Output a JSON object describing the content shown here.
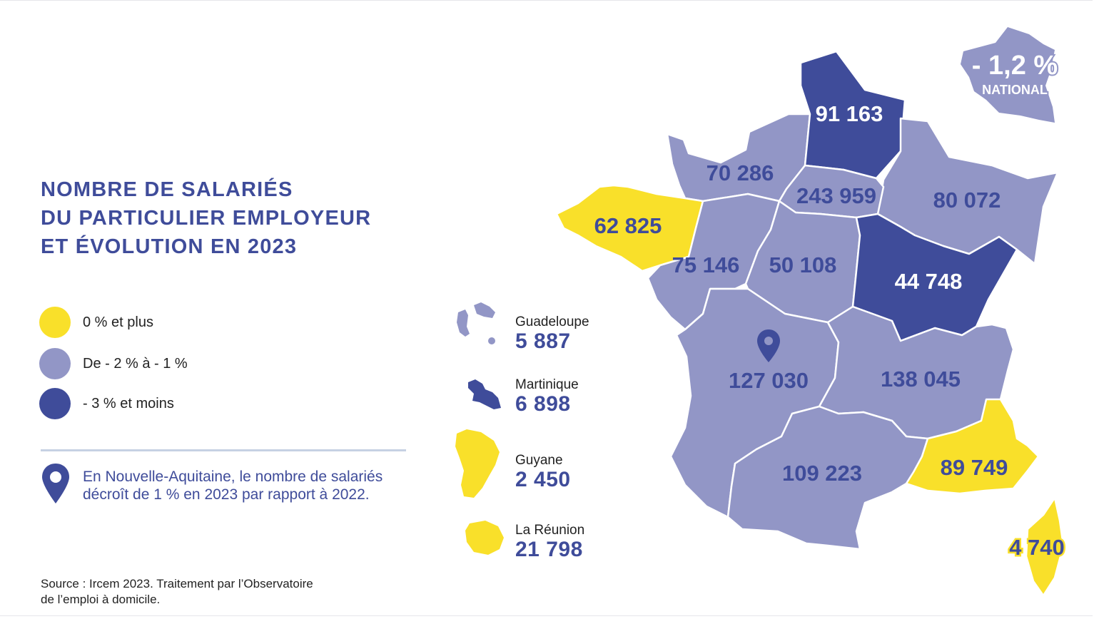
{
  "title_lines": [
    "NOMBRE DE SALARIÉS",
    "DU PARTICULIER EMPLOYEUR",
    "ET ÉVOLUTION EN 2023"
  ],
  "legend": [
    {
      "label": "0 % et plus",
      "color": "#f9e02a"
    },
    {
      "label": "De - 2 % à - 1 %",
      "color": "#9296c6"
    },
    {
      "label": "- 3 % et moins",
      "color": "#3f4c9a"
    }
  ],
  "note": "En Nouvelle-Aquitaine, le nombre de salariés décroît de 1 % en 2023 par rapport à 2022.",
  "source_lines": [
    "Source : Ircem 2023. Traitement par l’Observatoire",
    "de l’emploi à domicile."
  ],
  "national": {
    "value": "- 1,2 %",
    "label": "NATIONAL"
  },
  "regions": [
    {
      "name": "Hauts-de-France",
      "value": "91 163",
      "category": "- 3 % et moins"
    },
    {
      "name": "Normandie",
      "value": "70 286",
      "category": "De - 2 % à - 1 %"
    },
    {
      "name": "Île-de-France",
      "value": "243 959",
      "category": "De - 2 % à - 1 %"
    },
    {
      "name": "Grand Est",
      "value": "80 072",
      "category": "De - 2 % à - 1 %"
    },
    {
      "name": "Bretagne",
      "value": "62 825",
      "category": "0 % et plus"
    },
    {
      "name": "Pays de la Loire",
      "value": "75 146",
      "category": "De - 2 % à - 1 %"
    },
    {
      "name": "Centre-Val de Loire",
      "value": "50 108",
      "category": "De - 2 % à - 1 %"
    },
    {
      "name": "Bourgogne-Franche-Comté",
      "value": "44 748",
      "category": "- 3 % et moins"
    },
    {
      "name": "Nouvelle-Aquitaine",
      "value": "127 030",
      "category": "De - 2 % à - 1 %"
    },
    {
      "name": "Auvergne-Rhône-Alpes",
      "value": "138 045",
      "category": "De - 2 % à - 1 %"
    },
    {
      "name": "Occitanie",
      "value": "109 223",
      "category": "De - 2 % à - 1 %"
    },
    {
      "name": "Provence-Alpes-Côte d'Azur",
      "value": "89 749",
      "category": "0 % et plus"
    },
    {
      "name": "Corse",
      "value": "4 740",
      "category": "0 % et plus"
    }
  ],
  "overseas": [
    {
      "name": "Guadeloupe",
      "value": "5 887",
      "category": "De - 2 % à - 1 %"
    },
    {
      "name": "Martinique",
      "value": "6 898",
      "category": "- 3 % et moins"
    },
    {
      "name": "Guyane",
      "value": "2 450",
      "category": "0 % et plus"
    },
    {
      "name": "La Réunion",
      "value": "21 798",
      "category": "0 % et plus"
    }
  ]
}
